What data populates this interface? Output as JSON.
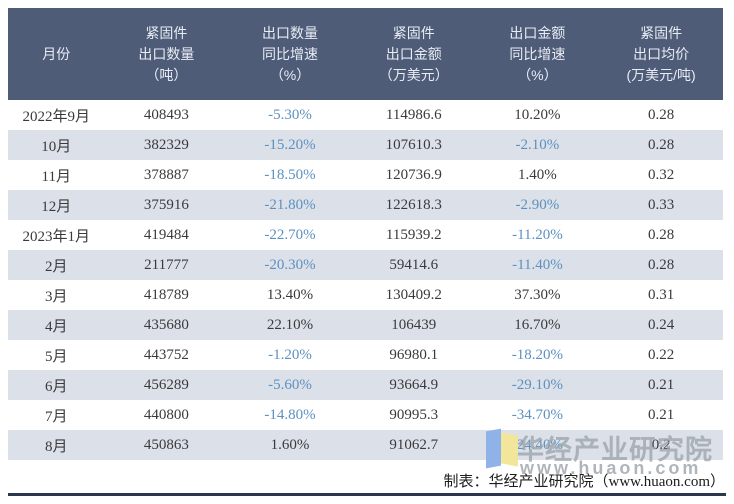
{
  "table": {
    "columns": [
      "月份",
      "紧固件\n出口数量\n（吨）",
      "出口数量\n同比增速\n（%）",
      "紧固件\n出口金额\n（万美元）",
      "出口金额\n同比增速\n（%）",
      "紧固件\n出口均价\n(万美元/吨)"
    ],
    "rows": [
      {
        "month": "2022年9月",
        "qty": "408493",
        "qty_growth": "-5.30%",
        "amount": "114986.6",
        "amount_growth": "10.20%",
        "price": "0.28"
      },
      {
        "month": "10月",
        "qty": "382329",
        "qty_growth": "-15.20%",
        "amount": "107610.3",
        "amount_growth": "-2.10%",
        "price": "0.28"
      },
      {
        "month": "11月",
        "qty": "378887",
        "qty_growth": "-18.50%",
        "amount": "120736.9",
        "amount_growth": "1.40%",
        "price": "0.32"
      },
      {
        "month": "12月",
        "qty": "375916",
        "qty_growth": "-21.80%",
        "amount": "122618.3",
        "amount_growth": "-2.90%",
        "price": "0.33"
      },
      {
        "month": "2023年1月",
        "qty": "419484",
        "qty_growth": "-22.70%",
        "amount": "115939.2",
        "amount_growth": "-11.20%",
        "price": "0.28"
      },
      {
        "month": "2月",
        "qty": "211777",
        "qty_growth": "-20.30%",
        "amount": "59414.6",
        "amount_growth": "-11.40%",
        "price": "0.28"
      },
      {
        "month": "3月",
        "qty": "418789",
        "qty_growth": "13.40%",
        "amount": "130409.2",
        "amount_growth": "37.30%",
        "price": "0.31"
      },
      {
        "month": "4月",
        "qty": "435680",
        "qty_growth": "22.10%",
        "amount": "106439",
        "amount_growth": "16.70%",
        "price": "0.24"
      },
      {
        "month": "5月",
        "qty": "443752",
        "qty_growth": "-1.20%",
        "amount": "96980.1",
        "amount_growth": "-18.20%",
        "price": "0.22"
      },
      {
        "month": "6月",
        "qty": "456289",
        "qty_growth": "-5.60%",
        "amount": "93664.9",
        "amount_growth": "-29.10%",
        "price": "0.21"
      },
      {
        "month": "7月",
        "qty": "440800",
        "qty_growth": "-14.80%",
        "amount": "90995.3",
        "amount_growth": "-34.70%",
        "price": "0.21"
      },
      {
        "month": "8月",
        "qty": "450863",
        "qty_growth": "1.60%",
        "amount": "91062.7",
        "amount_growth": "-24.40%",
        "price": "0.2"
      }
    ]
  },
  "footer": {
    "credit": "制表：华经产业研究院（www.huaon.com）"
  },
  "watermark": {
    "name": "华经产业研究院",
    "url": "www.huaon.com",
    "logo": "book-logo-icon"
  },
  "colors": {
    "header_bg": "#4E5C78",
    "header_text": "#E8ECF4",
    "row_alt_bg": "#DCE0E9",
    "body_text": "#3A3A3C",
    "negative_value": "#5C91C0",
    "bottom_line": "#2A374E",
    "watermark_gray": "#9FA6AC",
    "logo_blue": "#8FB2E8",
    "logo_yellow": "#F2E69A"
  }
}
